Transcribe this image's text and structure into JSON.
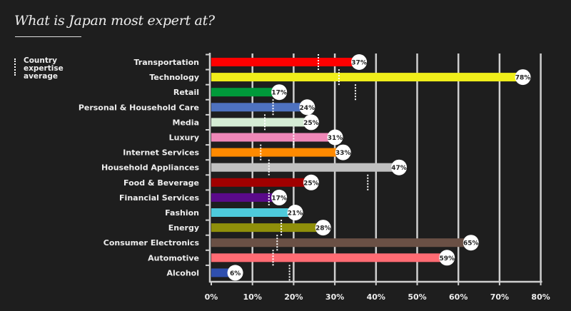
{
  "chart_data": {
    "type": "bar",
    "orientation": "horizontal",
    "title": "What is Japan most expert at?",
    "legend": {
      "label": "Country expertise average",
      "placement": "top-left"
    },
    "xlabel": "",
    "ylabel": "",
    "xlim": [
      0,
      80
    ],
    "xticks": [
      "0%",
      "10%",
      "20%",
      "30%",
      "40%",
      "50%",
      "60%",
      "70%",
      "80%"
    ],
    "grid": true,
    "categories": [
      "Transportation",
      "Technology",
      "Retail",
      "Personal & Household Care",
      "Media",
      "Luxury",
      "Internet Services",
      "Household Appliances",
      "Food & Beverage",
      "Financial Services",
      "Fashion",
      "Energy",
      "Consumer Electronics",
      "Automotive",
      "Alcohol"
    ],
    "values": [
      37,
      78,
      17,
      24,
      25,
      31,
      33,
      47,
      25,
      17,
      21,
      28,
      65,
      59,
      6
    ],
    "labels": [
      "37%",
      "78%",
      "17%",
      "24%",
      "25%",
      "31%",
      "33%",
      "47%",
      "25%",
      "17%",
      "21%",
      "28%",
      "65%",
      "59%",
      "6%"
    ],
    "country_average": [
      26,
      31,
      35,
      15,
      13,
      20,
      12,
      14,
      38,
      14,
      null,
      17,
      16,
      15,
      19
    ],
    "colors": [
      "#ff0000",
      "#f0ee1a",
      "#009a3a",
      "#4e72c0",
      "#d5ecd4",
      "#ef88b8",
      "#ff8a00",
      "#c0c0c0",
      "#a10000",
      "#5a0a8a",
      "#4ecadb",
      "#8f8f0a",
      "#6a5045",
      "#ff6b73",
      "#2f4fae"
    ]
  }
}
